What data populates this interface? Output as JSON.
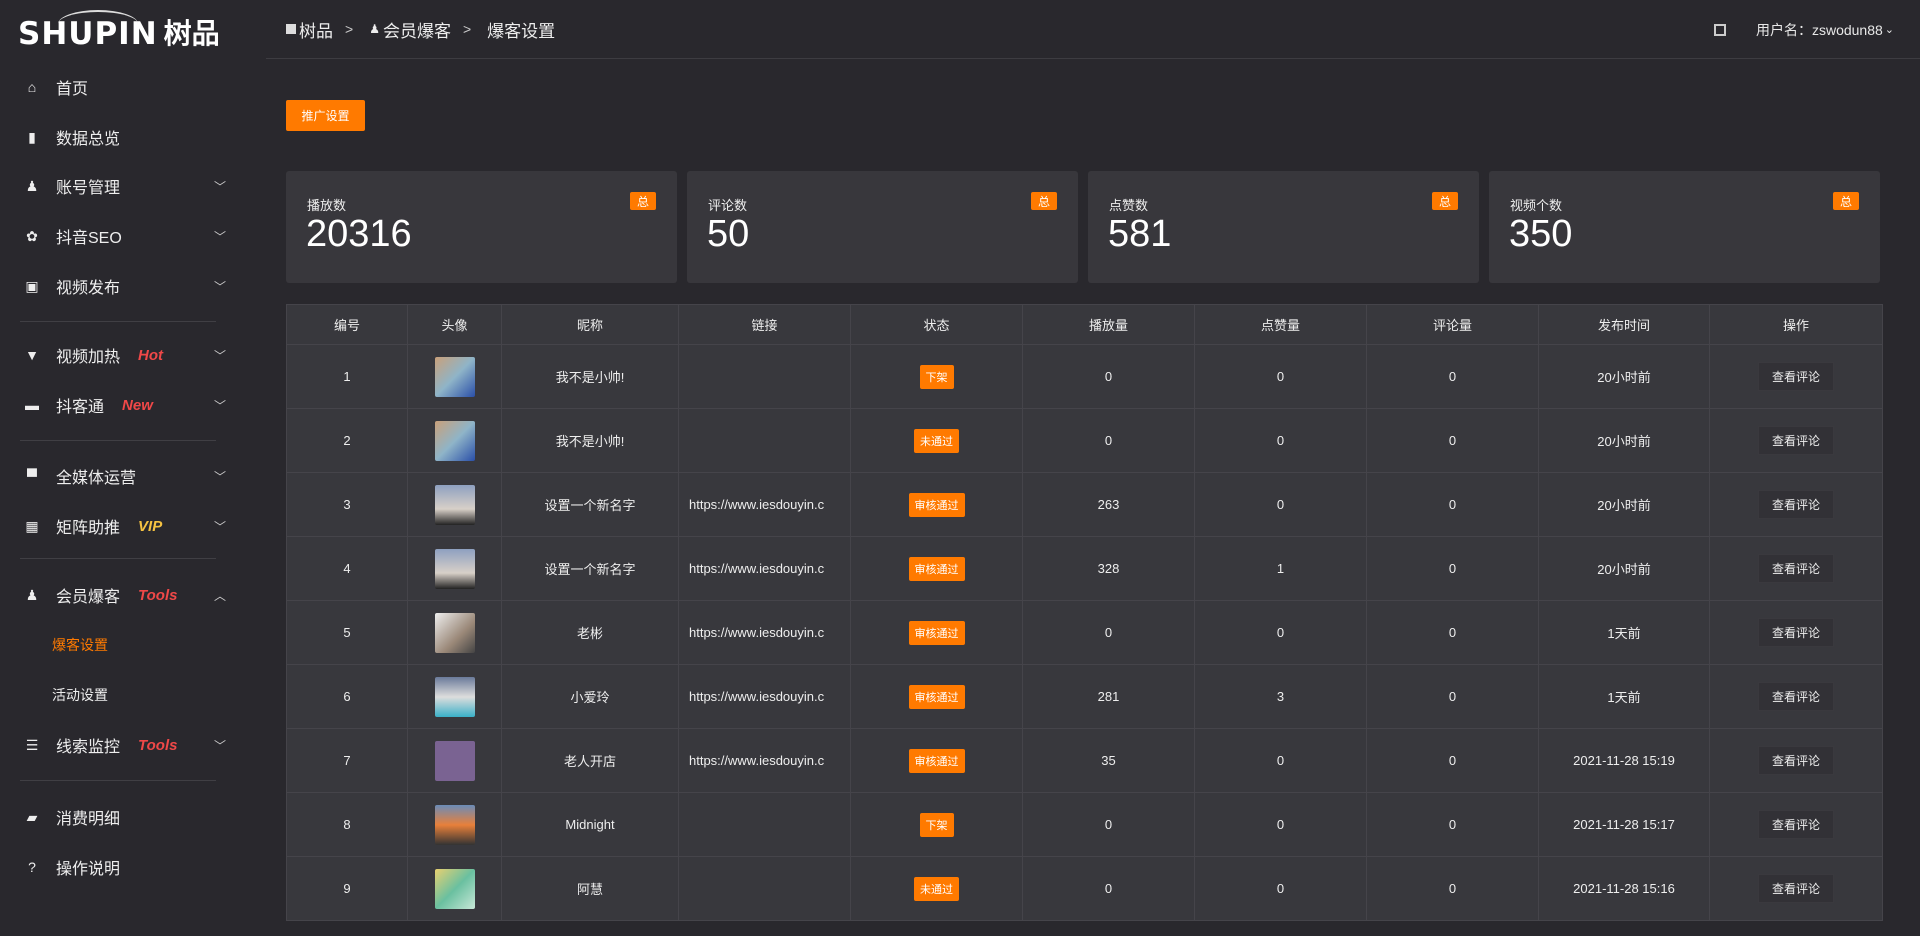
{
  "logo": {
    "text_en": "SHUPIN",
    "text_cn": "树品"
  },
  "header": {
    "breadcrumb": [
      "树品",
      "会员爆客",
      "爆客设置"
    ],
    "user_label": "用户名：",
    "username": "zswodun88"
  },
  "sidebar": {
    "items": [
      {
        "label": "首页",
        "icon": "home-icon"
      },
      {
        "label": "数据总览",
        "icon": "bar-chart-icon"
      },
      {
        "label": "账号管理",
        "icon": "user-icon",
        "chevron": "down"
      },
      {
        "label": "抖音SEO",
        "icon": "gear-icon",
        "chevron": "down"
      },
      {
        "label": "视频发布",
        "icon": "camera-icon",
        "chevron": "down"
      },
      {
        "label": "视频加热",
        "icon": "sign-icon",
        "tag": "Hot",
        "tag_color": "#f04848",
        "chevron": "down"
      },
      {
        "label": "抖客通",
        "icon": "chat-icon",
        "tag": "New",
        "tag_color": "#f04848",
        "chevron": "down"
      },
      {
        "label": "全媒体运营",
        "icon": "monitor-icon",
        "chevron": "down"
      },
      {
        "label": "矩阵助推",
        "icon": "grid-icon",
        "tag": "VIP",
        "tag_color": "#f5c242",
        "chevron": "down"
      },
      {
        "label": "会员爆客",
        "icon": "user-icon",
        "tag": "Tools",
        "tag_color": "#f04848",
        "chevron": "up"
      },
      {
        "label": "爆客设置",
        "sub": true,
        "active": true
      },
      {
        "label": "活动设置",
        "sub": true
      },
      {
        "label": "线索监控",
        "icon": "sliders-icon",
        "tag": "Tools",
        "tag_color": "#f04848",
        "chevron": "down"
      },
      {
        "label": "消费明细",
        "icon": "wallet-icon"
      },
      {
        "label": "操作说明",
        "icon": "help-icon"
      }
    ]
  },
  "promo_button": "推广设置",
  "stats": [
    {
      "label": "播放数",
      "value": "20316",
      "badge": "总"
    },
    {
      "label": "评论数",
      "value": "50",
      "badge": "总"
    },
    {
      "label": "点赞数",
      "value": "581",
      "badge": "总"
    },
    {
      "label": "视频个数",
      "value": "350",
      "badge": "总"
    }
  ],
  "table": {
    "columns": [
      "编号",
      "头像",
      "昵称",
      "链接",
      "状态",
      "播放量",
      "点赞量",
      "评论量",
      "发布时间",
      "操作"
    ],
    "action_label": "查看评论",
    "rows": [
      {
        "id": "1",
        "name": "我不是小帅!",
        "link": "",
        "status": "下架",
        "plays": "0",
        "likes": "0",
        "comments": "0",
        "time": "20小时前"
      },
      {
        "id": "2",
        "name": "我不是小帅!",
        "link": "",
        "status": "未通过",
        "plays": "0",
        "likes": "0",
        "comments": "0",
        "time": "20小时前"
      },
      {
        "id": "3",
        "name": "设置一个新名字",
        "link": "https://www.iesdouyin.c",
        "status": "审核通过",
        "plays": "263",
        "likes": "0",
        "comments": "0",
        "time": "20小时前"
      },
      {
        "id": "4",
        "name": "设置一个新名字",
        "link": "https://www.iesdouyin.c",
        "status": "审核通过",
        "plays": "328",
        "likes": "1",
        "comments": "0",
        "time": "20小时前"
      },
      {
        "id": "5",
        "name": "老彬",
        "link": "https://www.iesdouyin.c",
        "status": "审核通过",
        "plays": "0",
        "likes": "0",
        "comments": "0",
        "time": "1天前"
      },
      {
        "id": "6",
        "name": "小爱玲",
        "link": "https://www.iesdouyin.c",
        "status": "审核通过",
        "plays": "281",
        "likes": "3",
        "comments": "0",
        "time": "1天前"
      },
      {
        "id": "7",
        "name": "老人开店",
        "link": "https://www.iesdouyin.c",
        "status": "审核通过",
        "plays": "35",
        "likes": "0",
        "comments": "0",
        "time": "2021-11-28 15:19"
      },
      {
        "id": "8",
        "name": "Midnight",
        "link": "",
        "status": "下架",
        "plays": "0",
        "likes": "0",
        "comments": "0",
        "time": "2021-11-28 15:17"
      },
      {
        "id": "9",
        "name": "阿慧",
        "link": "",
        "status": "未通过",
        "plays": "0",
        "likes": "0",
        "comments": "0",
        "time": "2021-11-28 15:16"
      }
    ]
  },
  "colors": {
    "accent": "#ff7a00",
    "link": "#2f8bff"
  }
}
